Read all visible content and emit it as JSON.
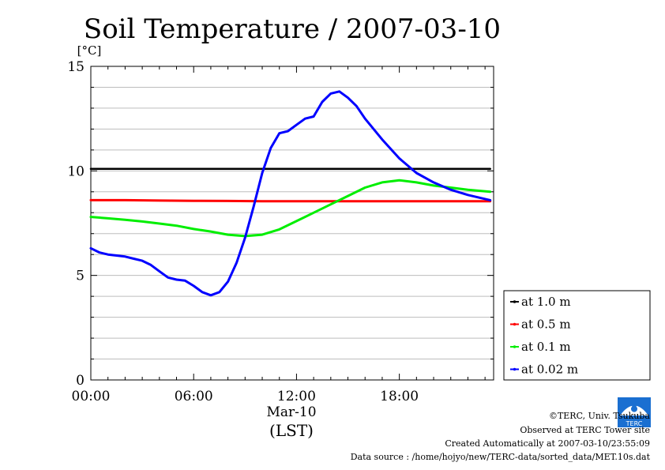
{
  "chart_data": {
    "type": "line",
    "title": "Soil Temperature / 2007-03-10",
    "ylabel": "[°C]",
    "xlabel": "(LST)",
    "x_tick_labels": [
      "00:00",
      "06:00",
      "12:00",
      "18:00"
    ],
    "x_tick_hours": [
      0,
      6,
      12,
      18
    ],
    "x_sublabel": "Mar-10",
    "x_range_hours": [
      0,
      23.5
    ],
    "y_ticks": [
      0,
      5,
      10,
      15
    ],
    "ylim": [
      0,
      15
    ],
    "grid": true,
    "legend_position": "right",
    "series": [
      {
        "name": "at 1.0 m",
        "color": "#000000",
        "x_hours": [
          0,
          2,
          4,
          6,
          8,
          10,
          12,
          14,
          16,
          18,
          20,
          22,
          23.3
        ],
        "values": [
          10.1,
          10.1,
          10.1,
          10.1,
          10.1,
          10.1,
          10.1,
          10.1,
          10.1,
          10.1,
          10.1,
          10.1,
          10.1
        ]
      },
      {
        "name": "at 0.5 m",
        "color": "#ff0000",
        "x_hours": [
          0,
          2,
          4,
          6,
          8,
          10,
          12,
          14,
          16,
          18,
          20,
          22,
          23.3
        ],
        "values": [
          8.6,
          8.6,
          8.58,
          8.57,
          8.56,
          8.55,
          8.55,
          8.55,
          8.55,
          8.55,
          8.55,
          8.55,
          8.55
        ]
      },
      {
        "name": "at 0.1 m",
        "color": "#00ee00",
        "x_hours": [
          0,
          1,
          2,
          3,
          4,
          5,
          6,
          7,
          8,
          9,
          10,
          11,
          12,
          13,
          14,
          15,
          16,
          17,
          18,
          19,
          20,
          21,
          22,
          23.3
        ],
        "values": [
          7.8,
          7.73,
          7.66,
          7.58,
          7.48,
          7.38,
          7.22,
          7.1,
          6.95,
          6.88,
          6.95,
          7.2,
          7.6,
          8.0,
          8.4,
          8.8,
          9.2,
          9.45,
          9.55,
          9.45,
          9.3,
          9.2,
          9.1,
          9.0
        ]
      },
      {
        "name": "at 0.02 m",
        "color": "#0000ff",
        "x_hours": [
          0,
          0.5,
          1,
          1.5,
          2,
          2.5,
          3,
          3.5,
          4,
          4.5,
          5,
          5.5,
          6,
          6.5,
          7,
          7.5,
          8,
          8.5,
          9,
          9.5,
          10,
          10.5,
          11,
          11.5,
          12,
          12.5,
          13,
          13.5,
          14,
          14.5,
          15,
          15.5,
          16,
          17,
          18,
          19,
          20,
          21,
          22,
          23.3
        ],
        "values": [
          6.3,
          6.1,
          6.0,
          5.95,
          5.9,
          5.8,
          5.7,
          5.5,
          5.2,
          4.9,
          4.8,
          4.75,
          4.5,
          4.2,
          4.05,
          4.2,
          4.7,
          5.6,
          6.8,
          8.3,
          9.9,
          11.1,
          11.8,
          11.9,
          12.2,
          12.5,
          12.6,
          13.3,
          13.7,
          13.8,
          13.5,
          13.1,
          12.5,
          11.5,
          10.6,
          9.9,
          9.45,
          9.1,
          8.85,
          8.6
        ]
      }
    ]
  },
  "footer": {
    "copyright": "©TERC, Univ. Tsukuba",
    "observed": "Observed at TERC Tower site",
    "created": "Created Automatically at 2007-03-10/23:55:09",
    "source": "Data source : /home/hojyo/new/TERC-data/sorted_data/MET.10s.dat",
    "logo_text": "TERC"
  }
}
